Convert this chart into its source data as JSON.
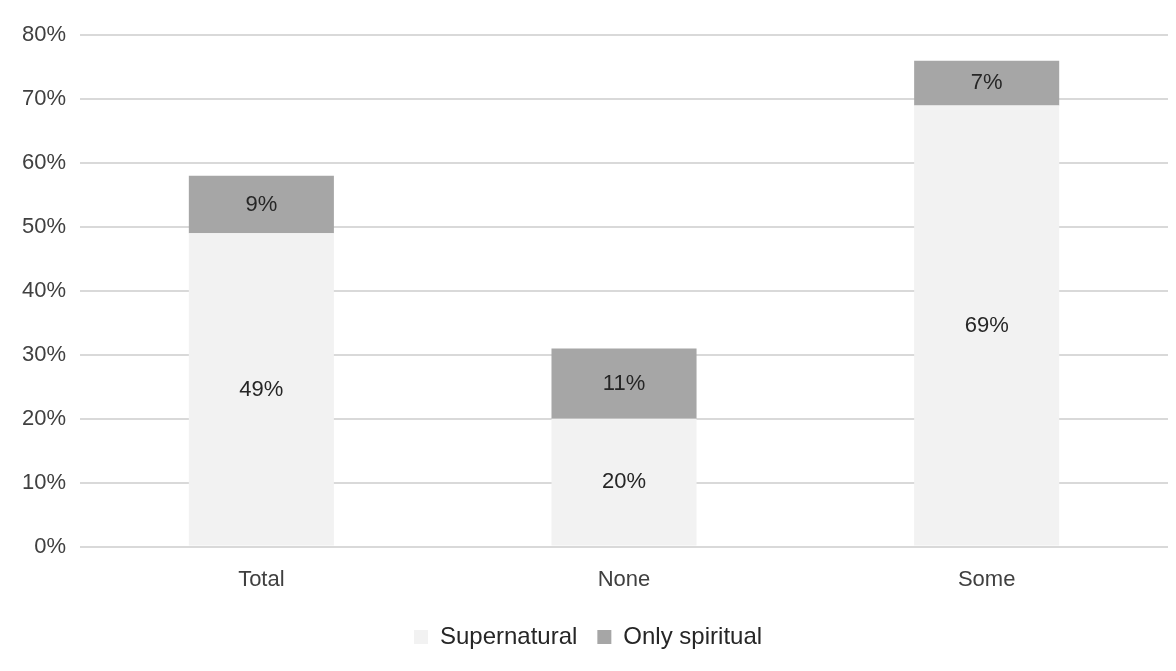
{
  "chart_data": {
    "type": "bar",
    "stacked": true,
    "categories": [
      "Total",
      "None",
      "Some"
    ],
    "series": [
      {
        "name": "Supernatural",
        "color": "#f2f2f2",
        "values": [
          49,
          20,
          69
        ],
        "value_labels": [
          "49%",
          "20%",
          "69%"
        ]
      },
      {
        "name": "Only spiritual",
        "color": "#a6a6a6",
        "values": [
          9,
          11,
          7
        ],
        "value_labels": [
          "9%",
          "11%",
          "7%"
        ]
      }
    ],
    "ylim": [
      0,
      80
    ],
    "yticks": [
      {
        "value": 0,
        "label": "0%"
      },
      {
        "value": 10,
        "label": "10%"
      },
      {
        "value": 20,
        "label": "20%"
      },
      {
        "value": 30,
        "label": "30%"
      },
      {
        "value": 40,
        "label": "40%"
      },
      {
        "value": 50,
        "label": "50%"
      },
      {
        "value": 60,
        "label": "60%"
      },
      {
        "value": 70,
        "label": "70%"
      },
      {
        "value": 80,
        "label": "80%"
      }
    ],
    "grid": "y",
    "legend": "bottom"
  }
}
